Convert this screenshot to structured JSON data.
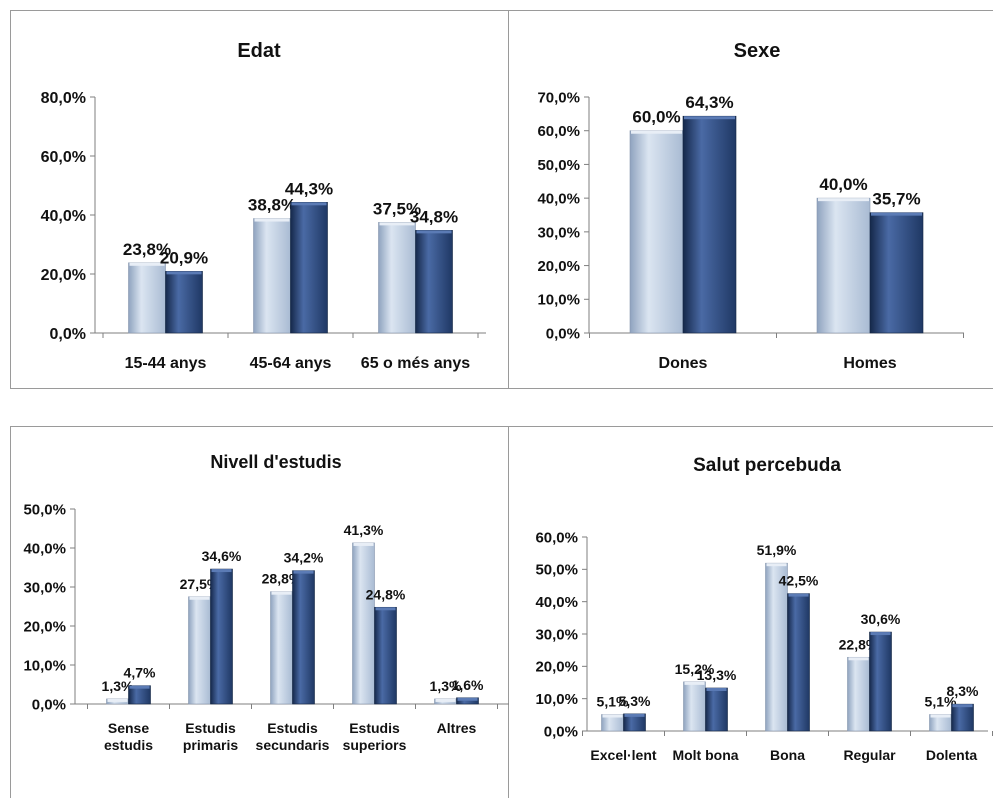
{
  "colors": {
    "series_light": "#a9bbd3",
    "series_light_top": "#dbe5f1",
    "series_dark": "#1f3864",
    "series_dark_top": "#4a6aa5",
    "axis": "#7f7f7f",
    "frame": "#9a9a9a"
  },
  "chart_data": [
    {
      "id": "edat",
      "type": "bar",
      "title": "Edat",
      "categories": [
        "15-44 anys",
        "45-64 anys",
        "65 o més anys"
      ],
      "series": [
        {
          "values": [
            23.8,
            38.8,
            37.5
          ],
          "labels": [
            "23,8%",
            "38,8%",
            "37,5%"
          ]
        },
        {
          "values": [
            20.9,
            44.3,
            34.8
          ],
          "labels": [
            "20,9%",
            "44,3%",
            "34,8%"
          ]
        }
      ],
      "ylim": [
        0,
        80
      ],
      "yticks": [
        "0,0%",
        "20,0%",
        "40,0%",
        "60,0%",
        "80,0%"
      ],
      "ytick_values": [
        0,
        20,
        40,
        60,
        80
      ],
      "grid": false,
      "legend": "none"
    },
    {
      "id": "sexe",
      "type": "bar",
      "title": "Sexe",
      "categories": [
        "Dones",
        "Homes"
      ],
      "series": [
        {
          "values": [
            60.0,
            40.0
          ],
          "labels": [
            "60,0%",
            "40,0%"
          ]
        },
        {
          "values": [
            64.3,
            35.7
          ],
          "labels": [
            "64,3%",
            "35,7%"
          ]
        }
      ],
      "ylim": [
        0,
        70
      ],
      "yticks": [
        "0,0%",
        "10,0%",
        "20,0%",
        "30,0%",
        "40,0%",
        "50,0%",
        "60,0%",
        "70,0%"
      ],
      "ytick_values": [
        0,
        10,
        20,
        30,
        40,
        50,
        60,
        70
      ],
      "grid": false,
      "legend": "none"
    },
    {
      "id": "estudis",
      "type": "bar",
      "title": "Nivell d'estudis",
      "categories": [
        [
          "Sense",
          "estudis"
        ],
        [
          "Estudis",
          "primaris"
        ],
        [
          "Estudis",
          "secundaris"
        ],
        [
          "Estudis",
          "superiors"
        ],
        [
          "Altres"
        ]
      ],
      "series": [
        {
          "values": [
            1.3,
            27.5,
            28.8,
            41.3,
            1.3
          ],
          "labels": [
            "1,3%",
            "27,5%",
            "28,8%",
            "41,3%",
            "1,3%"
          ]
        },
        {
          "values": [
            4.7,
            34.6,
            34.2,
            24.8,
            1.6
          ],
          "labels": [
            "4,7%",
            "34,6%",
            "34,2%",
            "24,8%",
            "1,6%"
          ]
        }
      ],
      "ylim": [
        0,
        50
      ],
      "yticks": [
        "0,0%",
        "10,0%",
        "20,0%",
        "30,0%",
        "40,0%",
        "50,0%"
      ],
      "ytick_values": [
        0,
        10,
        20,
        30,
        40,
        50
      ],
      "grid": false,
      "legend": "none"
    },
    {
      "id": "salut",
      "type": "bar",
      "title": "Salut percebuda",
      "categories": [
        [
          "Excel·lent"
        ],
        [
          "Molt bona"
        ],
        [
          "Bona"
        ],
        [
          "Regular"
        ],
        [
          "Dolenta"
        ]
      ],
      "series": [
        {
          "values": [
            5.1,
            15.2,
            51.9,
            22.8,
            5.1
          ],
          "labels": [
            "5,1%",
            "15,2%",
            "51,9%",
            "22,8%",
            "5,1%"
          ]
        },
        {
          "values": [
            5.3,
            13.3,
            42.5,
            30.6,
            8.3
          ],
          "labels": [
            "5,3%",
            "13,3%",
            "42,5%",
            "30,6%",
            "8,3%"
          ]
        }
      ],
      "ylim": [
        0,
        60
      ],
      "yticks": [
        "0,0%",
        "10,0%",
        "20,0%",
        "30,0%",
        "40,0%",
        "50,0%",
        "60,0%"
      ],
      "ytick_values": [
        0,
        10,
        20,
        30,
        40,
        50,
        60
      ],
      "grid": false,
      "legend": "none"
    }
  ]
}
